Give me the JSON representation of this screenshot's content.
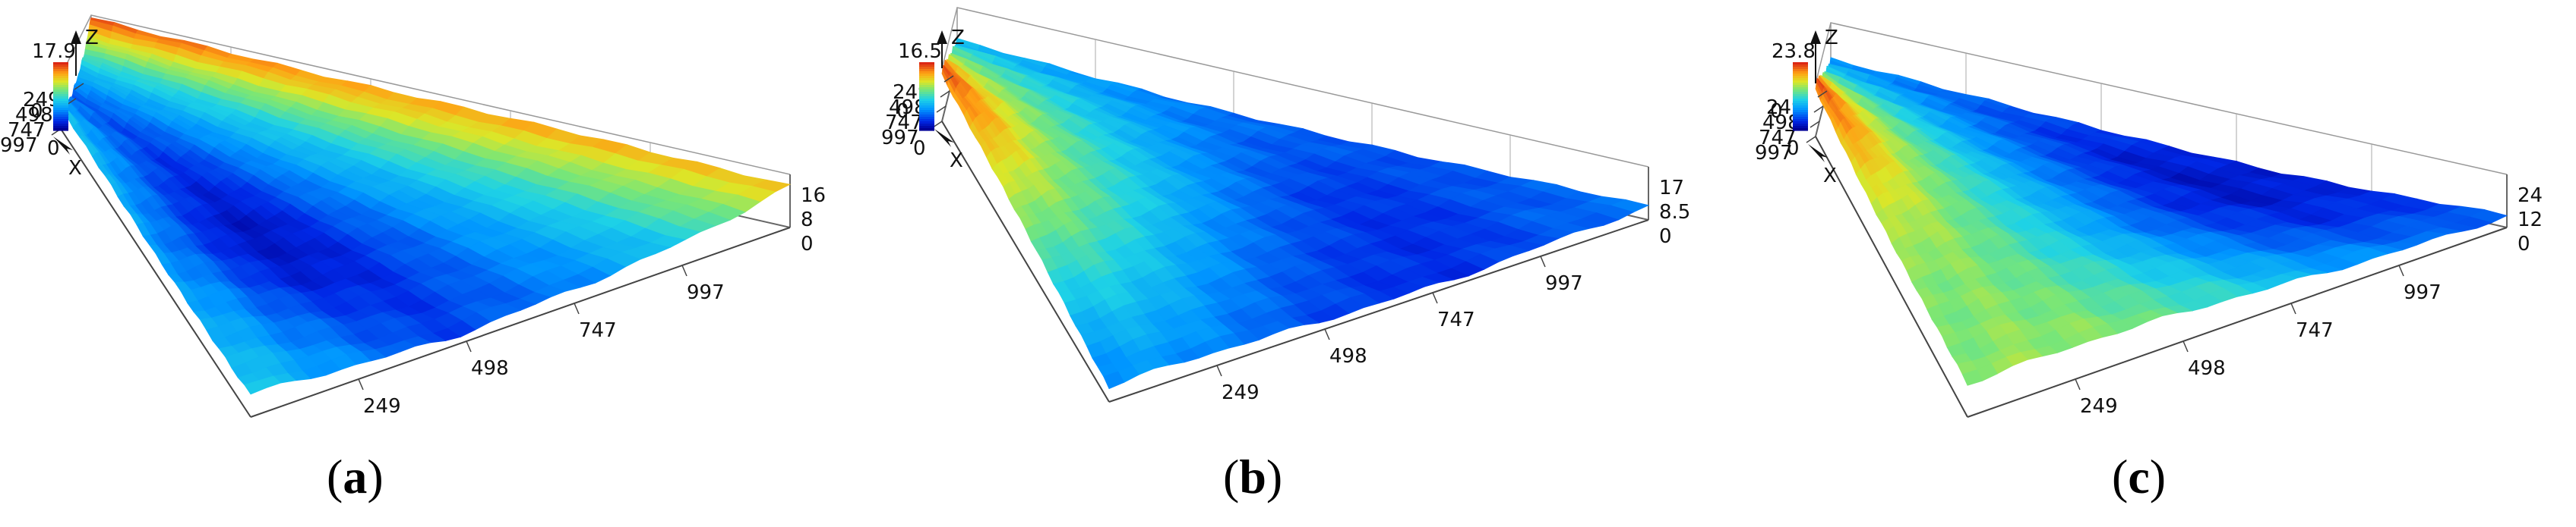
{
  "chart_data": [
    {
      "type": "surface",
      "panel_label": "a",
      "z_axis_label": "Z",
      "x_axis_label": "X",
      "colorbar": {
        "max_label": "17.9",
        "min_label": "0",
        "colormap": "jet"
      },
      "x_ticks": [
        "249",
        "498",
        "747",
        "997"
      ],
      "y_ticks": [
        "249",
        "498",
        "747",
        "997"
      ],
      "z_ticks": [
        "0",
        "8",
        "16"
      ],
      "zlim": [
        0,
        17.9
      ],
      "surface_heights": [
        [
          0.95,
          0.92,
          0.88,
          0.86,
          0.84,
          0.8,
          0.78
        ],
        [
          0.72,
          0.68,
          0.66,
          0.64,
          0.6,
          0.58,
          0.55
        ],
        [
          0.5,
          0.48,
          0.45,
          0.44,
          0.42,
          0.4,
          0.38
        ],
        [
          0.4,
          0.36,
          0.34,
          0.32,
          0.3,
          0.3,
          0.28
        ],
        [
          0.3,
          0.26,
          0.22,
          0.2,
          0.18,
          0.2,
          0.22
        ],
        [
          0.22,
          0.16,
          0.1,
          0.06,
          0.08,
          0.12,
          0.16
        ],
        [
          0.26,
          0.22,
          0.14,
          0.08,
          0.1,
          0.18,
          0.24
        ],
        [
          0.34,
          0.3,
          0.24,
          0.2,
          0.24,
          0.28,
          0.34
        ],
        [
          0.42,
          0.38,
          0.34,
          0.32,
          0.36,
          0.4,
          0.44
        ]
      ]
    },
    {
      "type": "surface",
      "panel_label": "b",
      "z_axis_label": "Z",
      "x_axis_label": "X",
      "colorbar": {
        "max_label": "16.5",
        "min_label": "0",
        "colormap": "jet"
      },
      "x_ticks": [
        "249",
        "498",
        "747",
        "997"
      ],
      "y_ticks": [
        "249",
        "498",
        "747",
        "997"
      ],
      "z_ticks": [
        "0",
        "8.5",
        "17"
      ],
      "zlim": [
        0,
        16.5
      ],
      "surface_heights": [
        [
          0.38,
          0.3,
          0.24,
          0.22,
          0.2,
          0.22,
          0.24
        ],
        [
          0.44,
          0.36,
          0.28,
          0.2,
          0.16,
          0.18,
          0.22
        ],
        [
          0.52,
          0.44,
          0.34,
          0.24,
          0.14,
          0.12,
          0.16
        ],
        [
          0.58,
          0.5,
          0.4,
          0.3,
          0.2,
          0.14,
          0.12
        ],
        [
          0.66,
          0.58,
          0.48,
          0.38,
          0.26,
          0.18,
          0.14
        ],
        [
          0.74,
          0.66,
          0.56,
          0.46,
          0.34,
          0.24,
          0.18
        ],
        [
          0.84,
          0.76,
          0.64,
          0.54,
          0.42,
          0.32,
          0.24
        ],
        [
          0.96,
          0.86,
          0.72,
          0.6,
          0.48,
          0.38,
          0.3
        ],
        [
          0.9,
          0.8,
          0.7,
          0.58,
          0.46,
          0.36,
          0.28
        ]
      ]
    },
    {
      "type": "surface",
      "panel_label": "c",
      "z_axis_label": "Z",
      "x_axis_label": "X",
      "colorbar": {
        "max_label": "23.8",
        "min_label": "0",
        "colormap": "jet"
      },
      "x_ticks": [
        "249",
        "498",
        "747",
        "997"
      ],
      "y_ticks": [
        "249",
        "498",
        "747",
        "997"
      ],
      "z_ticks": [
        "0",
        "12",
        "24"
      ],
      "zlim": [
        0,
        23.8
      ],
      "surface_heights": [
        [
          0.3,
          0.22,
          0.16,
          0.12,
          0.1,
          0.14,
          0.22
        ],
        [
          0.36,
          0.26,
          0.16,
          0.08,
          0.06,
          0.12,
          0.24
        ],
        [
          0.42,
          0.34,
          0.24,
          0.16,
          0.12,
          0.18,
          0.3
        ],
        [
          0.5,
          0.42,
          0.32,
          0.26,
          0.22,
          0.28,
          0.38
        ],
        [
          0.6,
          0.52,
          0.44,
          0.38,
          0.34,
          0.4,
          0.48
        ],
        [
          0.7,
          0.62,
          0.54,
          0.48,
          0.46,
          0.5,
          0.56
        ],
        [
          0.84,
          0.74,
          0.64,
          0.58,
          0.56,
          0.58,
          0.62
        ],
        [
          0.96,
          0.86,
          0.74,
          0.66,
          0.62,
          0.62,
          0.64
        ],
        [
          0.9,
          0.8,
          0.7,
          0.64,
          0.6,
          0.6,
          0.62
        ]
      ]
    }
  ]
}
